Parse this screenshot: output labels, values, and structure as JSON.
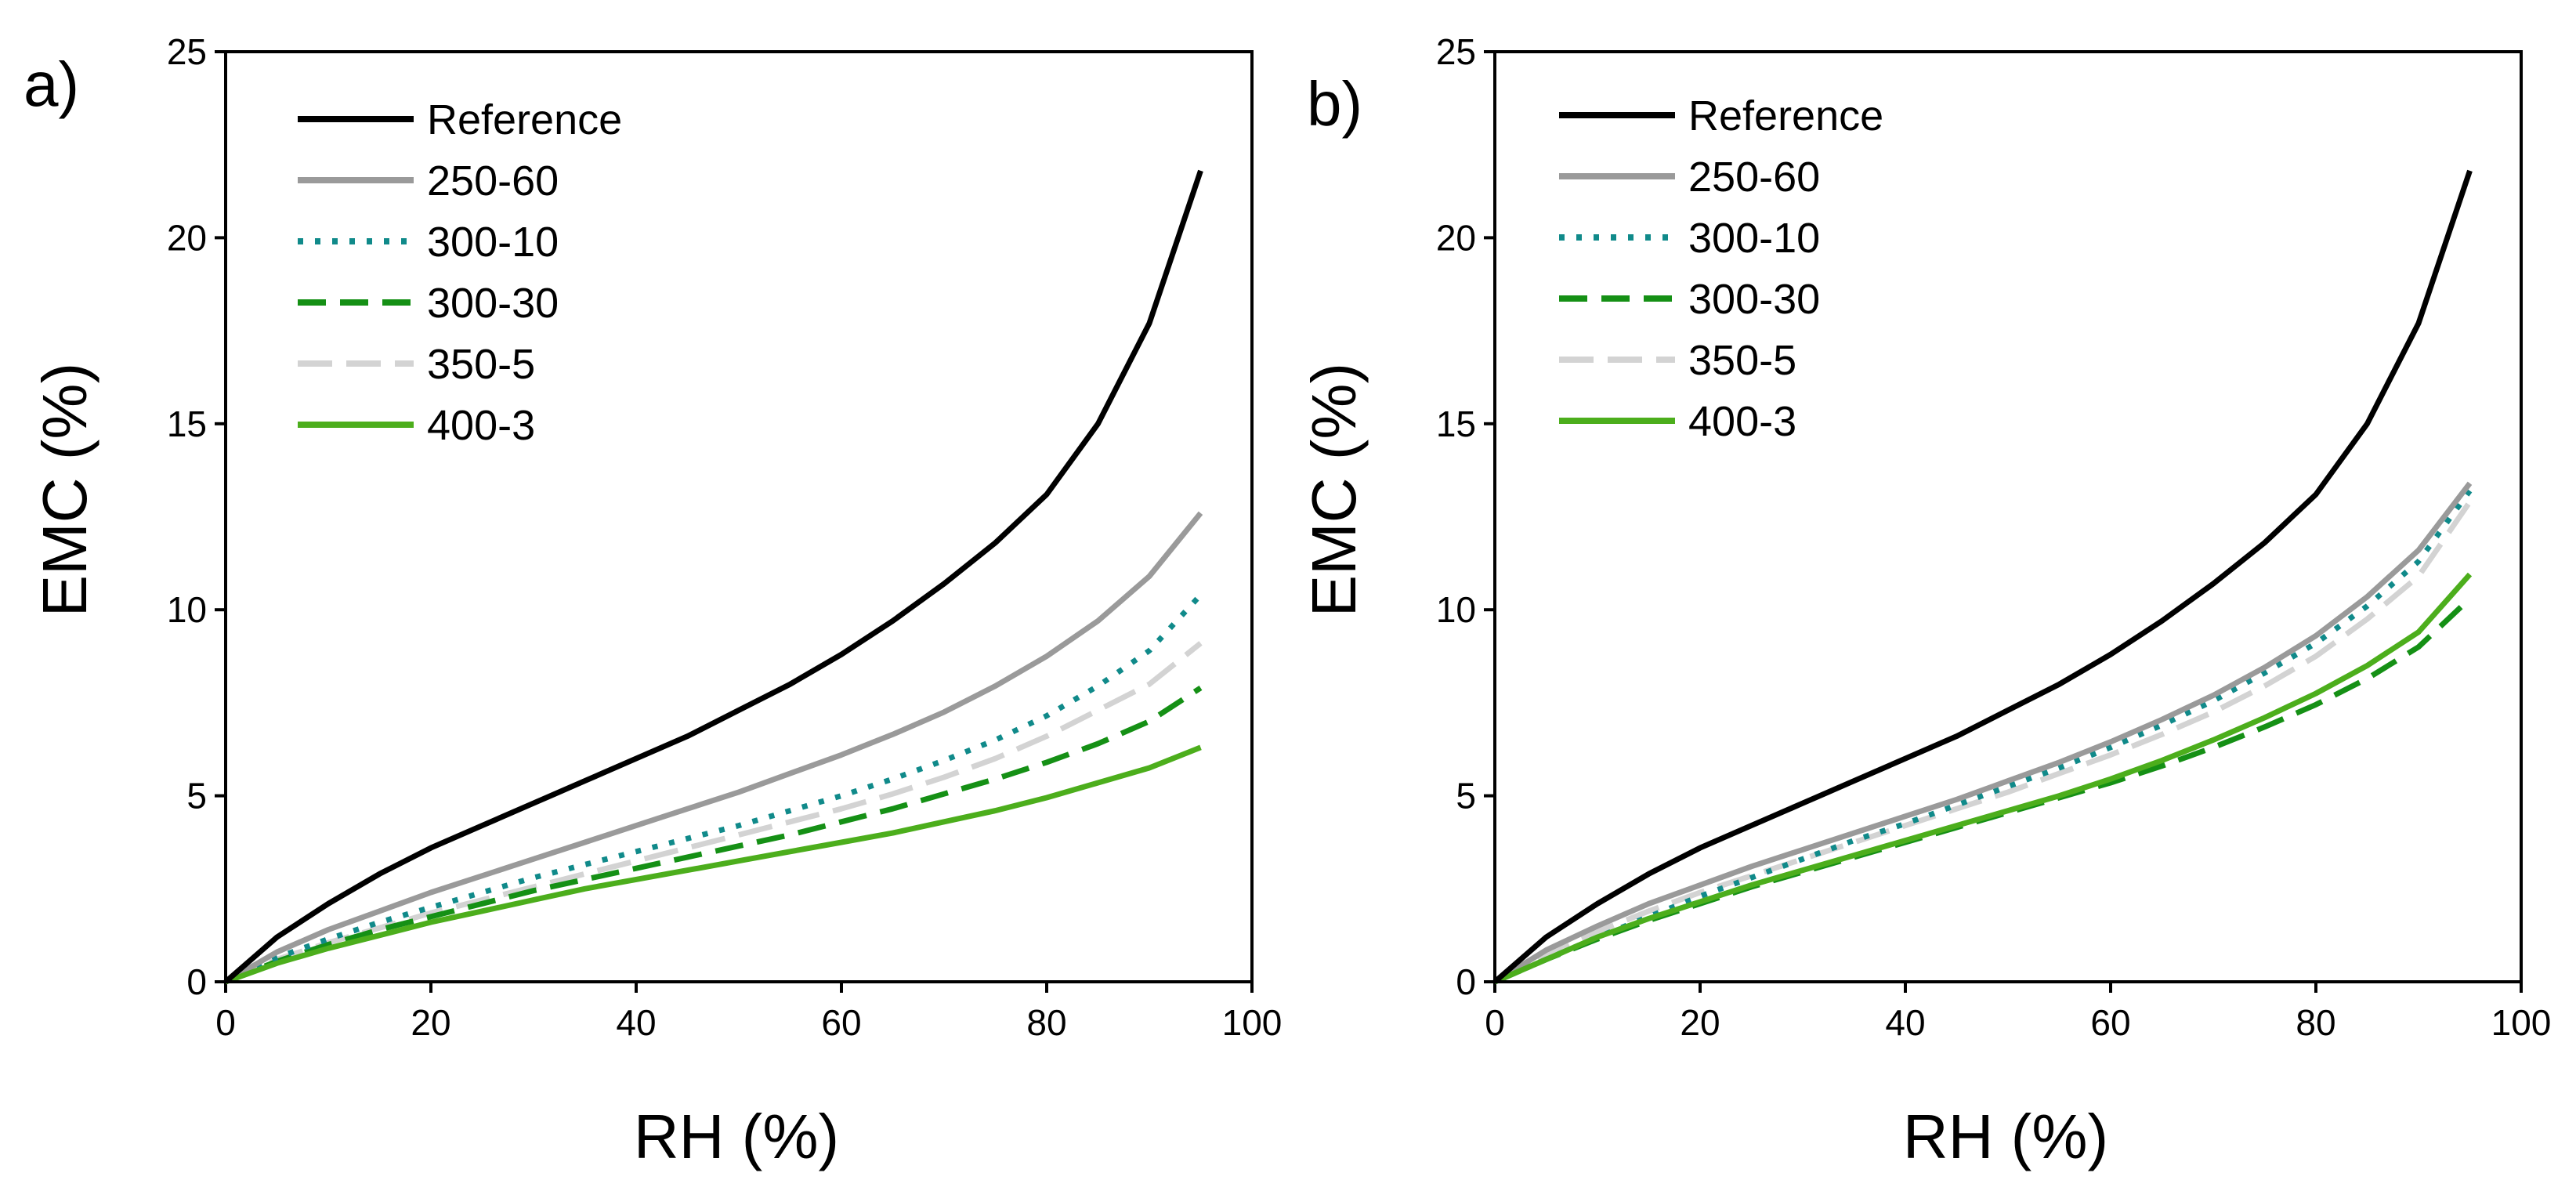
{
  "chart_data": [
    {
      "type": "line",
      "panel_label": "a)",
      "xlabel": "RH (%)",
      "ylabel": "EMC (%)",
      "xlim": [
        0,
        100
      ],
      "ylim": [
        0,
        25
      ],
      "xticks": [
        0,
        20,
        40,
        60,
        80,
        100
      ],
      "yticks": [
        0,
        5,
        10,
        15,
        20,
        25
      ],
      "legend_position": "top-left",
      "series": [
        {
          "name": "Reference",
          "color": "#000000",
          "dash": "solid",
          "x": [
            0,
            5,
            10,
            15,
            20,
            25,
            30,
            35,
            40,
            45,
            50,
            55,
            60,
            65,
            70,
            75,
            80,
            85,
            90,
            95
          ],
          "y": [
            0,
            1.2,
            2.1,
            2.9,
            3.6,
            4.2,
            4.8,
            5.4,
            6.0,
            6.6,
            7.3,
            8.0,
            8.8,
            9.7,
            10.7,
            11.8,
            13.1,
            15.0,
            17.7,
            21.8
          ]
        },
        {
          "name": "250-60",
          "color": "#9a9a9a",
          "dash": "solid",
          "x": [
            0,
            5,
            10,
            15,
            20,
            25,
            30,
            35,
            40,
            45,
            50,
            55,
            60,
            65,
            70,
            75,
            80,
            85,
            90,
            95
          ],
          "y": [
            0,
            0.8,
            1.4,
            1.9,
            2.4,
            2.85,
            3.3,
            3.75,
            4.2,
            4.65,
            5.1,
            5.6,
            6.1,
            6.65,
            7.25,
            7.95,
            8.75,
            9.7,
            10.9,
            12.6
          ]
        },
        {
          "name": "300-10",
          "color": "#108a8a",
          "dash": "dot",
          "x": [
            0,
            5,
            10,
            15,
            20,
            25,
            30,
            35,
            40,
            45,
            50,
            55,
            60,
            65,
            70,
            75,
            80,
            85,
            90,
            95
          ],
          "y": [
            0,
            0.65,
            1.15,
            1.6,
            2.0,
            2.4,
            2.8,
            3.15,
            3.5,
            3.85,
            4.2,
            4.6,
            5.0,
            5.45,
            5.95,
            6.5,
            7.15,
            7.95,
            8.9,
            10.4
          ]
        },
        {
          "name": "300-30",
          "color": "#159015",
          "dash": "dash",
          "x": [
            0,
            5,
            10,
            15,
            20,
            25,
            30,
            35,
            40,
            45,
            50,
            55,
            60,
            65,
            70,
            75,
            80,
            85,
            90,
            95
          ],
          "y": [
            0,
            0.55,
            1.0,
            1.4,
            1.75,
            2.1,
            2.45,
            2.75,
            3.05,
            3.35,
            3.65,
            3.95,
            4.3,
            4.65,
            5.05,
            5.45,
            5.9,
            6.4,
            7.0,
            7.9
          ]
        },
        {
          "name": "350-5",
          "color": "#d3d3d3",
          "dash": "longdash",
          "x": [
            0,
            5,
            10,
            15,
            20,
            25,
            30,
            35,
            40,
            45,
            50,
            55,
            60,
            65,
            70,
            75,
            80,
            85,
            90,
            95
          ],
          "y": [
            0,
            0.6,
            1.05,
            1.45,
            1.85,
            2.2,
            2.55,
            2.9,
            3.25,
            3.6,
            3.95,
            4.3,
            4.65,
            5.05,
            5.5,
            6.0,
            6.6,
            7.3,
            8.0,
            9.1
          ]
        },
        {
          "name": "400-3",
          "color": "#4cae1c",
          "dash": "solid",
          "x": [
            0,
            5,
            10,
            15,
            20,
            25,
            30,
            35,
            40,
            45,
            50,
            55,
            60,
            65,
            70,
            75,
            80,
            85,
            90,
            95
          ],
          "y": [
            0,
            0.5,
            0.9,
            1.25,
            1.6,
            1.9,
            2.2,
            2.5,
            2.75,
            3.0,
            3.25,
            3.5,
            3.75,
            4.0,
            4.3,
            4.6,
            4.95,
            5.35,
            5.75,
            6.3
          ]
        }
      ]
    },
    {
      "type": "line",
      "panel_label": "b)",
      "xlabel": "RH (%)",
      "ylabel": "EMC (%)",
      "xlim": [
        0,
        100
      ],
      "ylim": [
        0,
        25
      ],
      "xticks": [
        0,
        20,
        40,
        60,
        80,
        100
      ],
      "yticks": [
        0,
        5,
        10,
        15,
        20,
        25
      ],
      "legend_position": "top-left",
      "series": [
        {
          "name": "Reference",
          "color": "#000000",
          "dash": "solid",
          "x": [
            0,
            5,
            10,
            15,
            20,
            25,
            30,
            35,
            40,
            45,
            50,
            55,
            60,
            65,
            70,
            75,
            80,
            85,
            90,
            95
          ],
          "y": [
            0,
            1.2,
            2.1,
            2.9,
            3.6,
            4.2,
            4.8,
            5.4,
            6.0,
            6.6,
            7.3,
            8.0,
            8.8,
            9.7,
            10.7,
            11.8,
            13.1,
            15.0,
            17.7,
            21.8
          ]
        },
        {
          "name": "250-60",
          "color": "#9a9a9a",
          "dash": "solid",
          "x": [
            0,
            5,
            10,
            15,
            20,
            25,
            30,
            35,
            40,
            45,
            50,
            55,
            60,
            65,
            70,
            75,
            80,
            85,
            90,
            95
          ],
          "y": [
            0,
            0.85,
            1.5,
            2.1,
            2.6,
            3.1,
            3.55,
            4.0,
            4.45,
            4.9,
            5.4,
            5.9,
            6.45,
            7.05,
            7.7,
            8.45,
            9.3,
            10.35,
            11.6,
            13.4
          ]
        },
        {
          "name": "300-10",
          "color": "#108a8a",
          "dash": "dot",
          "x": [
            0,
            5,
            10,
            15,
            20,
            25,
            30,
            35,
            40,
            45,
            50,
            55,
            60,
            65,
            70,
            75,
            80,
            85,
            90,
            95
          ],
          "y": [
            0,
            0.6,
            1.2,
            1.75,
            2.3,
            2.8,
            3.3,
            3.8,
            4.25,
            4.75,
            5.25,
            5.75,
            6.3,
            6.9,
            7.55,
            8.3,
            9.1,
            10.1,
            11.3,
            13.2
          ]
        },
        {
          "name": "300-30",
          "color": "#159015",
          "dash": "dash",
          "x": [
            0,
            5,
            10,
            15,
            20,
            25,
            30,
            35,
            40,
            45,
            50,
            55,
            60,
            65,
            70,
            75,
            80,
            85,
            90,
            95
          ],
          "y": [
            0,
            0.6,
            1.15,
            1.65,
            2.1,
            2.55,
            2.95,
            3.35,
            3.75,
            4.15,
            4.55,
            4.95,
            5.35,
            5.8,
            6.3,
            6.85,
            7.45,
            8.15,
            9.0,
            10.3
          ]
        },
        {
          "name": "350-5",
          "color": "#d3d3d3",
          "dash": "longdash",
          "x": [
            0,
            5,
            10,
            15,
            20,
            25,
            30,
            35,
            40,
            45,
            50,
            55,
            60,
            65,
            70,
            75,
            80,
            85,
            90,
            95
          ],
          "y": [
            0,
            0.75,
            1.35,
            1.9,
            2.4,
            2.85,
            3.3,
            3.75,
            4.2,
            4.65,
            5.1,
            5.6,
            6.1,
            6.65,
            7.25,
            7.95,
            8.75,
            9.75,
            10.9,
            12.9
          ]
        },
        {
          "name": "400-3",
          "color": "#4cae1c",
          "dash": "solid",
          "x": [
            0,
            5,
            10,
            15,
            20,
            25,
            30,
            35,
            40,
            45,
            50,
            55,
            60,
            65,
            70,
            75,
            80,
            85,
            90,
            95
          ],
          "y": [
            0,
            0.6,
            1.2,
            1.7,
            2.15,
            2.6,
            3.0,
            3.4,
            3.8,
            4.2,
            4.6,
            5.0,
            5.45,
            5.95,
            6.5,
            7.1,
            7.75,
            8.5,
            9.4,
            10.95
          ]
        }
      ]
    }
  ]
}
